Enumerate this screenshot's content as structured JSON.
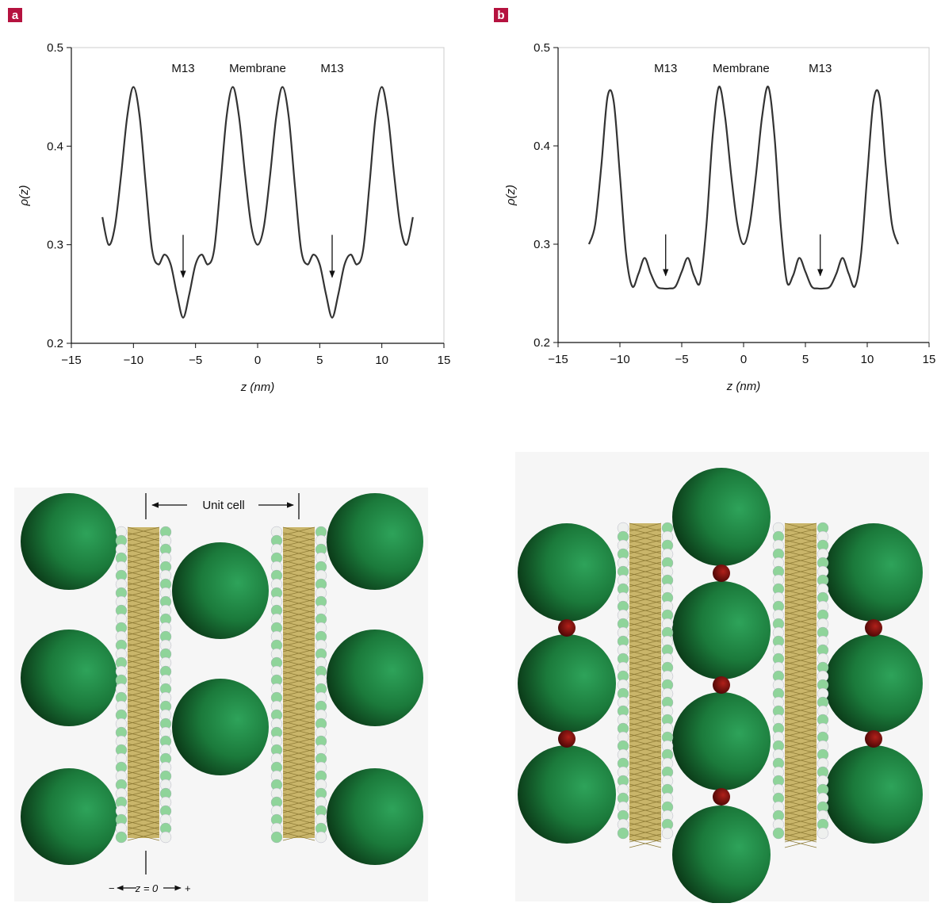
{
  "chart_data": [
    {
      "type": "line",
      "panel": "a",
      "xlabel": "z (nm)",
      "ylabel": "ρ(z)",
      "xlim": [
        -15,
        15
      ],
      "ylim": [
        0.2,
        0.5
      ],
      "xticks": [
        {
          "value": -15,
          "label": "−15"
        },
        {
          "value": -10,
          "label": "−10"
        },
        {
          "value": -5,
          "label": "−5"
        },
        0,
        5,
        10,
        15
      ],
      "yticks": [
        0.2,
        0.3,
        0.4,
        0.5
      ],
      "color": "#333333",
      "x": [
        -12.5,
        -12,
        -11.5,
        -11,
        -10.5,
        -10,
        -9.5,
        -9,
        -8.5,
        -8,
        -7.5,
        -7,
        -6.5,
        -6,
        -5.5,
        -5,
        -4.5,
        -4,
        -3.5,
        -3,
        -2.5,
        -2,
        -1.5,
        -1,
        -0.5,
        0,
        0.5,
        1,
        1.5,
        2,
        2.5,
        3,
        3.5,
        4,
        4.5,
        5,
        5.5,
        6,
        6.5,
        7,
        7.5,
        8,
        8.5,
        9,
        9.5,
        10,
        10.5,
        11,
        11.5,
        12,
        12.5
      ],
      "values": [
        0.328,
        0.3,
        0.318,
        0.37,
        0.43,
        0.46,
        0.43,
        0.36,
        0.295,
        0.28,
        0.29,
        0.28,
        0.25,
        0.226,
        0.25,
        0.28,
        0.29,
        0.28,
        0.295,
        0.36,
        0.43,
        0.46,
        0.43,
        0.37,
        0.318,
        0.3,
        0.318,
        0.37,
        0.43,
        0.46,
        0.43,
        0.36,
        0.295,
        0.28,
        0.29,
        0.28,
        0.25,
        0.226,
        0.25,
        0.28,
        0.29,
        0.28,
        0.295,
        0.36,
        0.43,
        0.46,
        0.43,
        0.37,
        0.318,
        0.3,
        0.328
      ],
      "annotations": [
        {
          "text": "M13",
          "x": -6,
          "y": 0.475
        },
        {
          "text": "Membrane",
          "x": 0,
          "y": 0.475
        },
        {
          "text": "M13",
          "x": 6,
          "y": 0.475
        }
      ],
      "arrows": [
        {
          "x": -6,
          "from": 0.31,
          "to": 0.267
        },
        {
          "x": 6,
          "from": 0.31,
          "to": 0.267
        }
      ]
    },
    {
      "type": "line",
      "panel": "b",
      "xlabel": "z (nm)",
      "ylabel": "ρ(z)",
      "xlim": [
        -15,
        15
      ],
      "ylim": [
        0.2,
        0.5
      ],
      "xticks": [
        {
          "value": -15,
          "label": "−15"
        },
        {
          "value": -10,
          "label": "−10"
        },
        {
          "value": -5,
          "label": "−5"
        },
        0,
        5,
        10,
        15
      ],
      "yticks": [
        0.2,
        0.3,
        0.4,
        0.5
      ],
      "color": "#333333",
      "x": [
        -12.5,
        -12,
        -11.5,
        -11,
        -10.5,
        -10,
        -9.5,
        -9,
        -8.5,
        -8,
        -7.5,
        -7,
        -6.5,
        -6,
        -5.5,
        -5,
        -4.5,
        -4,
        -3.5,
        -3,
        -2.5,
        -2,
        -1.5,
        -1,
        -0.5,
        0,
        0.5,
        1,
        1.5,
        2,
        2.5,
        3,
        3.5,
        4,
        4.5,
        5,
        5.5,
        6,
        6.5,
        7,
        7.5,
        8,
        8.5,
        9,
        9.5,
        10,
        10.5,
        11,
        11.5,
        12,
        12.5
      ],
      "values": [
        0.3,
        0.32,
        0.38,
        0.45,
        0.445,
        0.37,
        0.29,
        0.257,
        0.27,
        0.286,
        0.27,
        0.257,
        0.255,
        0.255,
        0.257,
        0.272,
        0.286,
        0.268,
        0.262,
        0.32,
        0.41,
        0.46,
        0.43,
        0.37,
        0.32,
        0.3,
        0.32,
        0.37,
        0.43,
        0.46,
        0.41,
        0.32,
        0.262,
        0.268,
        0.286,
        0.272,
        0.257,
        0.255,
        0.255,
        0.257,
        0.27,
        0.286,
        0.27,
        0.257,
        0.29,
        0.37,
        0.445,
        0.45,
        0.38,
        0.32,
        0.3
      ],
      "annotations": [
        {
          "text": "M13",
          "x": -6.3,
          "y": 0.475
        },
        {
          "text": "Membrane",
          "x": -0.2,
          "y": 0.475
        },
        {
          "text": "M13",
          "x": 6.2,
          "y": 0.475
        }
      ],
      "arrows": [
        {
          "x": -6.3,
          "from": 0.31,
          "to": 0.268
        },
        {
          "x": 6.2,
          "from": 0.31,
          "to": 0.268
        }
      ]
    }
  ],
  "illustration": {
    "unit_cell": "Unit cell",
    "minus": "−",
    "origin": "z = 0",
    "plus": "+"
  }
}
